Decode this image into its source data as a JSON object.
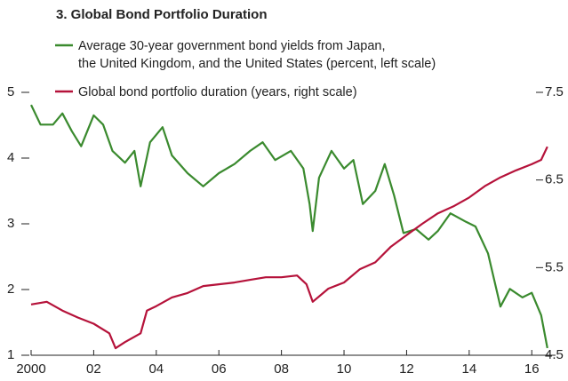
{
  "chart_data": {
    "type": "line",
    "title": "3. Global Bond Portfolio Duration",
    "xlim": [
      2000,
      2016.76
    ],
    "xticks": [
      2000,
      {
        "value": 2002,
        "label": "02"
      },
      {
        "value": 2004,
        "label": "04"
      },
      {
        "value": 2006,
        "label": "06"
      },
      {
        "value": 2008,
        "label": "08"
      },
      {
        "value": 2010,
        "label": "10"
      },
      {
        "value": 2012,
        "label": "12"
      },
      {
        "value": 2014,
        "label": "14"
      },
      {
        "value": 2016,
        "label": "16"
      }
    ],
    "ylim": [
      1,
      5
    ],
    "yticks": [
      1,
      2,
      3,
      4,
      5
    ],
    "y2lim": [
      4.5,
      7.5
    ],
    "y2ticks": [
      4.5,
      5.5,
      6.5,
      7.5
    ],
    "series": [
      {
        "name": "Average 30-year government bond yields from Japan,\nthe United Kingdom, and the United States (percent, left scale)",
        "color": "#3a8a2e",
        "x": [
          2000.0,
          2000.3,
          2000.7,
          2001.0,
          2001.3,
          2001.6,
          2002.0,
          2002.3,
          2002.6,
          2003.0,
          2003.3,
          2003.5,
          2003.8,
          2004.2,
          2004.5,
          2005.0,
          2005.5,
          2006.0,
          2006.5,
          2007.0,
          2007.4,
          2007.8,
          2008.3,
          2008.7,
          2008.9,
          2009.0,
          2009.2,
          2009.6,
          2010.0,
          2010.3,
          2010.6,
          2011.0,
          2011.3,
          2011.6,
          2011.9,
          2012.3,
          2012.7,
          2013.0,
          2013.4,
          2013.9,
          2014.2,
          2014.6,
          2015.0,
          2015.3,
          2015.7,
          2016.0,
          2016.3,
          2016.5
        ],
        "values": [
          4.81,
          4.51,
          4.51,
          4.68,
          4.41,
          4.18,
          4.65,
          4.51,
          4.11,
          3.93,
          4.11,
          3.57,
          4.24,
          4.47,
          4.04,
          3.77,
          3.57,
          3.77,
          3.91,
          4.11,
          4.24,
          3.97,
          4.11,
          3.84,
          3.3,
          2.89,
          3.7,
          4.11,
          3.84,
          3.97,
          3.3,
          3.5,
          3.91,
          3.43,
          2.86,
          2.92,
          2.76,
          2.89,
          3.16,
          3.03,
          2.96,
          2.55,
          1.74,
          2.01,
          1.88,
          1.95,
          1.61,
          1.11
        ]
      },
      {
        "name": "Global bond portfolio duration (years, right scale)",
        "color": "#b5123a",
        "axis": "y2",
        "x": [
          2000.0,
          2000.5,
          2001.0,
          2001.5,
          2002.0,
          2002.5,
          2002.7,
          2003.0,
          2003.5,
          2003.7,
          2004.0,
          2004.5,
          2005.0,
          2005.5,
          2006.0,
          2006.5,
          2007.0,
          2007.5,
          2008.0,
          2008.5,
          2008.8,
          2009.0,
          2009.5,
          2010.0,
          2010.5,
          2011.0,
          2011.5,
          2012.0,
          2012.5,
          2013.0,
          2013.5,
          2014.0,
          2014.5,
          2015.0,
          2015.5,
          2016.0,
          2016.3,
          2016.5
        ],
        "values": [
          5.08,
          5.11,
          5.01,
          4.93,
          4.86,
          4.75,
          4.58,
          4.65,
          4.75,
          5.01,
          5.06,
          5.16,
          5.21,
          5.29,
          5.31,
          5.33,
          5.36,
          5.39,
          5.39,
          5.41,
          5.31,
          5.11,
          5.26,
          5.33,
          5.48,
          5.56,
          5.74,
          5.87,
          6.0,
          6.12,
          6.2,
          6.3,
          6.43,
          6.53,
          6.61,
          6.68,
          6.73,
          6.88
        ]
      }
    ]
  }
}
